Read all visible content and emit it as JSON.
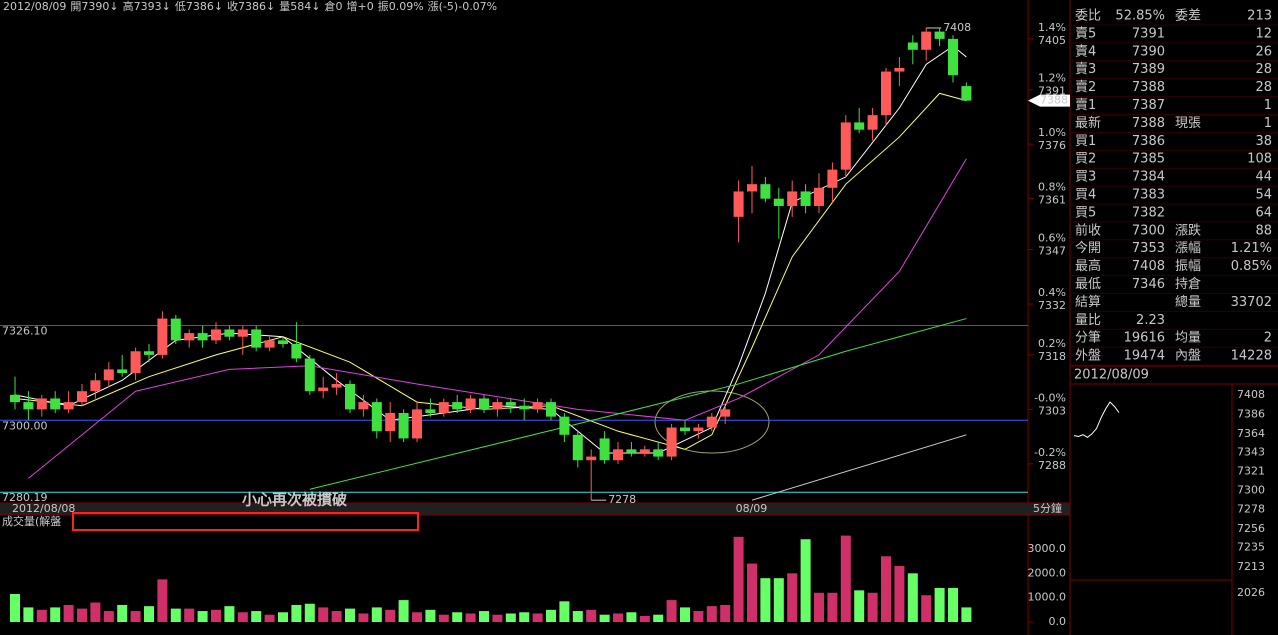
{
  "header": {
    "segments": [
      "2012/08/09",
      "開7390↓",
      "高7393↓",
      "低7386↓",
      "收7386↓",
      "量584↓",
      "倉0",
      "增+0",
      "振0.09%",
      "漲(-5)-0.07%"
    ]
  },
  "chart_data": [
    {
      "type": "candlestick",
      "categories": [
        "2012/08/08",
        null,
        null,
        null,
        null,
        null,
        null,
        null,
        null,
        null,
        null,
        null,
        null,
        null,
        null,
        null,
        null,
        null,
        null,
        null,
        null,
        null,
        null,
        null,
        null,
        null,
        null,
        null,
        null,
        null,
        null,
        null,
        null,
        null,
        null,
        null,
        null,
        null,
        null,
        null,
        null,
        null,
        null,
        null,
        null,
        null,
        null,
        null,
        null,
        null,
        null,
        null,
        null,
        null,
        "08/09",
        null,
        null,
        null,
        null,
        null,
        null,
        null,
        null,
        null,
        null,
        null,
        null,
        null,
        null,
        null,
        null,
        null
      ],
      "period_label": "5分鐘",
      "candles": [
        [
          7307,
          7312,
          7303,
          7305
        ],
        [
          7305,
          7308,
          7300,
          7303
        ],
        [
          7303,
          7307,
          7301,
          7306
        ],
        [
          7306,
          7308,
          7302,
          7303
        ],
        [
          7303,
          7308,
          7302,
          7305
        ],
        [
          7305,
          7310,
          7304,
          7308
        ],
        [
          7308,
          7313,
          7306,
          7311
        ],
        [
          7311,
          7316,
          7309,
          7314
        ],
        [
          7314,
          7318,
          7312,
          7313
        ],
        [
          7313,
          7320,
          7311,
          7319
        ],
        [
          7319,
          7321,
          7316,
          7318
        ],
        [
          7318,
          7330,
          7317,
          7328
        ],
        [
          7328,
          7329,
          7321,
          7322
        ],
        [
          7322,
          7325,
          7320,
          7324
        ],
        [
          7324,
          7326,
          7320,
          7322
        ],
        [
          7322,
          7327,
          7321,
          7325
        ],
        [
          7325,
          7326,
          7322,
          7323
        ],
        [
          7323,
          7326,
          7318,
          7325
        ],
        [
          7325,
          7326,
          7319,
          7320
        ],
        [
          7320,
          7323,
          7319,
          7322
        ],
        [
          7322,
          7323,
          7320,
          7321
        ],
        [
          7321,
          7327,
          7316,
          7317
        ],
        [
          7317,
          7318,
          7307,
          7308
        ],
        [
          7308,
          7312,
          7306,
          7309
        ],
        [
          7309,
          7313,
          7307,
          7310
        ],
        [
          7310,
          7311,
          7302,
          7303
        ],
        [
          7303,
          7307,
          7301,
          7305
        ],
        [
          7305,
          7306,
          7295,
          7297
        ],
        [
          7297,
          7305,
          7294,
          7302
        ],
        [
          7302,
          7303,
          7294,
          7295
        ],
        [
          7295,
          7305,
          7294,
          7303
        ],
        [
          7303,
          7306,
          7301,
          7302
        ],
        [
          7302,
          7306,
          7301,
          7305
        ],
        [
          7305,
          7307,
          7302,
          7303
        ],
        [
          7303,
          7307,
          7302,
          7306
        ],
        [
          7306,
          7307,
          7302,
          7303
        ],
        [
          7303,
          7306,
          7301,
          7305
        ],
        [
          7305,
          7306,
          7302,
          7304
        ],
        [
          7304,
          7306,
          7300,
          7303
        ],
        [
          7303,
          7306,
          7302,
          7305
        ],
        [
          7305,
          7306,
          7300,
          7301
        ],
        [
          7301,
          7302,
          7294,
          7296
        ],
        [
          7296,
          7297,
          7287,
          7289
        ],
        [
          7289,
          7292,
          7278,
          7290
        ],
        [
          7295,
          7297,
          7288,
          7289
        ],
        [
          7289,
          7294,
          7288,
          7292
        ],
        [
          7292,
          7294,
          7290,
          7291
        ],
        [
          7291,
          7293,
          7290,
          7292
        ],
        [
          7292,
          7294,
          7289,
          7290
        ],
        [
          7290,
          7299,
          7289,
          7298
        ],
        [
          7298,
          7300,
          7296,
          7297
        ],
        [
          7297,
          7299,
          7295,
          7298
        ],
        [
          7298,
          7302,
          7297,
          7301
        ],
        [
          7301,
          7304,
          7299,
          7303
        ],
        [
          7356,
          7366,
          7349,
          7363
        ],
        [
          7363,
          7370,
          7357,
          7365
        ],
        [
          7365,
          7367,
          7360,
          7361
        ],
        [
          7361,
          7364,
          7350,
          7359
        ],
        [
          7359,
          7366,
          7356,
          7363
        ],
        [
          7363,
          7365,
          7357,
          7359
        ],
        [
          7359,
          7368,
          7357,
          7364
        ],
        [
          7364,
          7371,
          7360,
          7369
        ],
        [
          7369,
          7384,
          7367,
          7382
        ],
        [
          7382,
          7386,
          7379,
          7380
        ],
        [
          7380,
          7386,
          7377,
          7384
        ],
        [
          7384,
          7397,
          7381,
          7396
        ],
        [
          7396,
          7400,
          7392,
          7397
        ],
        [
          7404,
          7406,
          7398,
          7402
        ],
        [
          7402,
          7408,
          7399,
          7407
        ],
        [
          7407,
          7408,
          7403,
          7405
        ],
        [
          7405,
          7406,
          7393,
          7395
        ],
        [
          7392,
          7393,
          7388,
          7388
        ]
      ],
      "lines": [
        {
          "color": "#ffffff",
          "x": [
            0,
            4,
            8,
            12,
            16,
            20,
            24,
            28,
            32,
            36,
            40,
            44,
            48,
            52,
            54,
            56,
            58,
            62,
            66,
            68,
            70,
            71
          ],
          "values": [
            7307,
            7304,
            7311,
            7322,
            7324,
            7323,
            7311,
            7300,
            7302,
            7304,
            7303,
            7291,
            7291,
            7298,
            7315,
            7335,
            7360,
            7367,
            7386,
            7398,
            7403,
            7400
          ]
        },
        {
          "color": "#ffff60",
          "x": [
            0,
            5,
            10,
            15,
            20,
            25,
            30,
            35,
            40,
            45,
            50,
            52,
            55,
            58,
            62,
            66,
            69,
            71
          ],
          "values": [
            7306,
            7304,
            7312,
            7318,
            7323,
            7316,
            7305,
            7303,
            7304,
            7297,
            7292,
            7296,
            7320,
            7345,
            7365,
            7378,
            7390,
            7388
          ]
        },
        {
          "color": "#e040e0",
          "x": [
            1,
            9,
            16,
            22,
            30,
            42,
            50,
            54,
            60,
            66,
            71
          ],
          "values": [
            7284,
            7308,
            7314,
            7315,
            7310,
            7303,
            7300,
            7306,
            7318,
            7341,
            7372
          ]
        },
        {
          "color": "#40e040",
          "x": [
            22,
            42,
            54,
            62,
            71
          ],
          "values": [
            7281,
            7299,
            7310,
            7319,
            7328
          ]
        },
        {
          "color": "#d0d0d0",
          "x": [
            55,
            71
          ],
          "values": [
            7278,
            7296
          ]
        }
      ],
      "ref_lines": [
        {
          "value": 7326.1,
          "label": "7326.10",
          "color": "#c03030"
        },
        {
          "value": 7300,
          "label": "7300.00",
          "color": "#3060ff"
        },
        {
          "value": 7280.19,
          "label": "7280.19",
          "color": "#40e0e0"
        }
      ],
      "annotations": [
        7408,
        7278
      ],
      "last_price": 7388,
      "note": "小心再次被摜破",
      "ylim": [
        7277.5,
        7413.5
      ],
      "yticks": [
        7405,
        7391,
        7376,
        7361,
        7347,
        7332,
        7318,
        7303,
        7288
      ],
      "ytick_pcts": [
        "1.4%",
        "1.2%",
        "1.0%",
        "0.8%",
        "0.6%",
        "0.4%",
        "0.2%",
        "-0.0%",
        "-0.2%"
      ],
      "up_color": "#ff5a5a",
      "down_color": "#40e040"
    },
    {
      "type": "bar",
      "title": "成交量(解盤",
      "values": [
        1150,
        600,
        500,
        600,
        700,
        550,
        800,
        450,
        700,
        450,
        650,
        1750,
        550,
        550,
        450,
        500,
        650,
        400,
        450,
        300,
        400,
        700,
        750,
        600,
        450,
        550,
        350,
        600,
        500,
        900,
        400,
        500,
        300,
        400,
        350,
        450,
        300,
        350,
        400,
        350,
        500,
        850,
        450,
        500,
        300,
        350,
        400,
        250,
        300,
        900,
        600,
        450,
        650,
        700,
        3500,
        2400,
        1800,
        1800,
        2000,
        3400,
        1200,
        1200,
        3550,
        1300,
        1200,
        2700,
        2300,
        2000,
        1100,
        1400,
        1400,
        600
      ],
      "ylim": [
        0,
        3780
      ],
      "yticks": [
        {
          "value": 0,
          "label": "0.0"
        },
        {
          "value": 1000,
          "label": "1000.0"
        },
        {
          "value": 2000,
          "label": "2000.0"
        },
        {
          "value": 3000,
          "label": "3000.0"
        }
      ],
      "up_color": "#d0306a",
      "down_color": "#66ff66"
    }
  ],
  "order_book": {
    "rows": [
      [
        "委比",
        "52.85%",
        "委差",
        "213"
      ],
      [
        "賣5",
        "7391",
        null,
        "12"
      ],
      [
        "賣4",
        "7390",
        null,
        "26"
      ],
      [
        "賣3",
        "7389",
        null,
        "28"
      ],
      [
        "賣2",
        "7388",
        null,
        "28"
      ],
      [
        "賣1",
        "7387",
        null,
        "1"
      ],
      [
        "最新",
        "7388",
        "現張",
        "1"
      ],
      [
        "買1",
        "7386",
        null,
        "38"
      ],
      [
        "買2",
        "7385",
        null,
        "108"
      ],
      [
        "買3",
        "7384",
        null,
        "44"
      ],
      [
        "買4",
        "7383",
        null,
        "54"
      ],
      [
        "買5",
        "7382",
        null,
        "64"
      ],
      [
        "前收",
        "7300",
        "漲跌",
        "88"
      ],
      [
        "今開",
        "7353",
        "漲幅",
        "1.21%"
      ],
      [
        "最高",
        "7408",
        "振幅",
        "0.85%"
      ],
      [
        "最低",
        "7346",
        "持倉",
        null
      ],
      [
        "結算",
        null,
        "總量",
        "33702"
      ],
      [
        "量比",
        "2.23",
        null,
        null
      ],
      [
        "分筆",
        "19616",
        "均量",
        "2"
      ],
      [
        "外盤",
        "19474",
        "內盤",
        "14228"
      ]
    ]
  },
  "mini_chart": {
    "date": "2012/08/09",
    "ylim": [
      7200,
      7415
    ],
    "yticks": [
      7408,
      7386,
      7364,
      7343,
      7321,
      7300,
      7278,
      7256,
      7235,
      7213
    ],
    "volume_label": "2026",
    "values": [
      7362,
      7361,
      7363,
      7360,
      7364,
      7370,
      7382,
      7392,
      7400,
      7395,
      7388
    ]
  }
}
